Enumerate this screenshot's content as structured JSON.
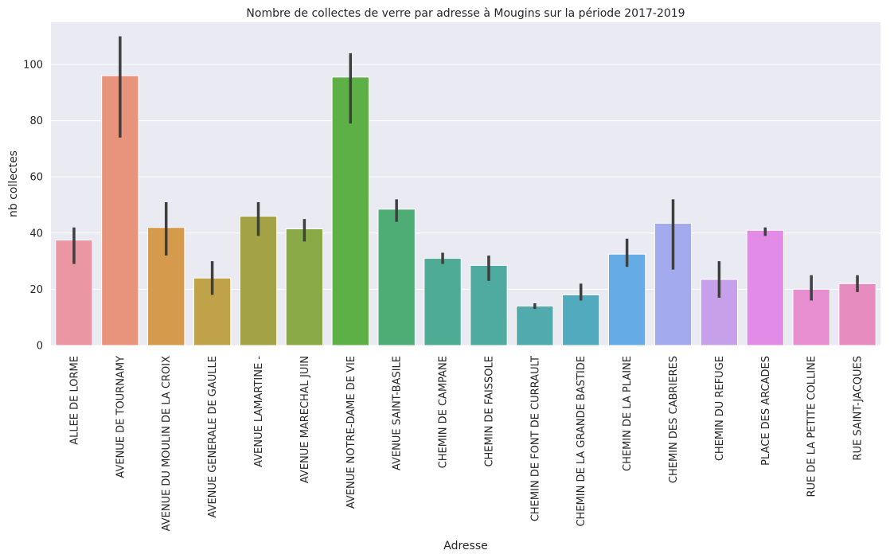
{
  "chart_data": {
    "type": "bar",
    "title": "Nombre de collectes de verre par adresse à Mougins sur la période 2017-2019",
    "xlabel": "Adresse",
    "ylabel": "nb collectes",
    "ylim": [
      0,
      115
    ],
    "yticks": [
      0,
      20,
      40,
      60,
      80,
      100
    ],
    "grid": true,
    "background": "#eaeaf2",
    "errorbar_color": "#3f3f3f",
    "categories": [
      "ALLEE DE LORME",
      "AVENUE DE TOURNAMY",
      "AVENUE DU MOULIN DE LA CROIX",
      "AVENUE GENERALE DE GAULLE",
      "AVENUE LAMARTINE -",
      "AVENUE MARECHAL JUIN",
      "AVENUE NOTRE-DAME DE VIE",
      "AVENUE SAINT-BASILE",
      "CHEMIN DE CAMPANE",
      "CHEMIN DE FAISSOLE",
      "CHEMIN DE FONT DE CURRAULT",
      "CHEMIN DE LA GRANDE BASTIDE",
      "CHEMIN DE LA PLAINE",
      "CHEMIN DES CABRIERES",
      "CHEMIN DU REFUGE",
      "PLACE DES ARCADES",
      "RUE DE LA PETITE COLLINE",
      "RUE SAINT-JACQUES"
    ],
    "values": [
      37.5,
      96,
      42,
      24,
      46,
      41.5,
      95.5,
      48.5,
      31,
      28.5,
      14,
      18,
      32.5,
      43.5,
      23.5,
      41,
      20,
      22
    ],
    "error_low": [
      29,
      74,
      32,
      18,
      39,
      37,
      79,
      44,
      29,
      23,
      13,
      16,
      28,
      27,
      17,
      39,
      16,
      19
    ],
    "error_high": [
      42,
      110,
      51,
      30,
      51,
      45,
      104,
      52,
      33,
      32,
      15,
      22,
      38,
      52,
      30,
      42,
      25,
      25
    ],
    "colors": [
      "#ea96a3",
      "#e8937b",
      "#d59a4b",
      "#c0a249",
      "#a4a247",
      "#8aaa48",
      "#5db045",
      "#4ead74",
      "#4eab94",
      "#4faaa0",
      "#50aaae",
      "#52aabf",
      "#65abe5",
      "#a3aaed",
      "#c6a0eb",
      "#e28ce8",
      "#e78fd1",
      "#e78cbf"
    ]
  }
}
